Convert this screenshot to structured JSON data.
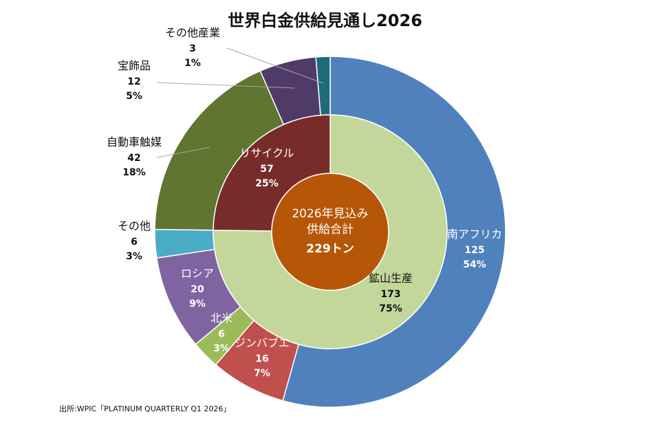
{
  "title": "世界白金供給見通し2026",
  "source": "出所:WPIC「PLATINUM QUARTERLY Q1 2026」",
  "colors": {
    "south_africa": "#4f81bd",
    "zimbabwe": "#c0504d",
    "north_america": "#9bbb59",
    "russia": "#8064a2",
    "other": "#4bacc6",
    "autocatalyst": "#5f7530",
    "jewellery": "#4f3a68",
    "industrial": "#1f6b78",
    "mine_supply": "#c4d79b",
    "recycling": "#772c2a",
    "center": "#b65708"
  },
  "chart_data": {
    "type": "donut",
    "title": "世界白金供給見通し2026",
    "center": {
      "line1": "2026年見込み",
      "line2": "供給合計",
      "line3": "229トン"
    },
    "inner_ring": [
      {
        "name": "鉱山生産",
        "value": 173,
        "pct": "75%"
      },
      {
        "name": "リサイクル",
        "value": 57,
        "pct": "25%"
      }
    ],
    "outer_ring": [
      {
        "name": "南アフリカ",
        "value": 125,
        "pct": "54%"
      },
      {
        "name": "ジンバブエ",
        "value": 16,
        "pct": "7%"
      },
      {
        "name": "北米",
        "value": 6,
        "pct": "3%"
      },
      {
        "name": "ロシア",
        "value": 20,
        "pct": "9%"
      },
      {
        "name": "その他",
        "value": 6,
        "pct": "3%"
      },
      {
        "name": "自動車触媒",
        "value": 42,
        "pct": "18%"
      },
      {
        "name": "宝飾品",
        "value": 12,
        "pct": "5%"
      },
      {
        "name": "その他産業",
        "value": 3,
        "pct": "1%"
      }
    ]
  }
}
